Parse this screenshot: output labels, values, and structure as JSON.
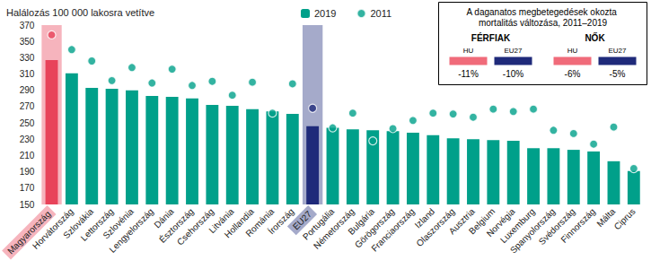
{
  "chart_data": {
    "type": "bar",
    "title": "Halálozás 100 000 lakosra vetítve",
    "categories": [
      "Magyarország",
      "Horvátország",
      "Szlovákia",
      "Lettország",
      "Szlovénia",
      "Lengyelország",
      "Dánia",
      "Észtország",
      "Csehország",
      "Litvánia",
      "Hollandia",
      "Románia",
      "Írország",
      "EU27",
      "Portugália",
      "Németország",
      "Bulgária",
      "Görögország",
      "Franciaország",
      "Izland",
      "Olaszország",
      "Ausztria",
      "Belgium",
      "Norvégia",
      "Luxemburg",
      "Spanyolország",
      "Svédország",
      "Finnország",
      "Málta",
      "Ciprus"
    ],
    "series": [
      {
        "name": "2019",
        "type": "bar",
        "color": "#00a08a",
        "colors": [
          "#e8435a",
          "#00a08a",
          "#00a08a",
          "#00a08a",
          "#00a08a",
          "#00a08a",
          "#00a08a",
          "#00a08a",
          "#00a08a",
          "#00a08a",
          "#00a08a",
          "#00a08a",
          "#00a08a",
          "#1f2a7a",
          "#00a08a",
          "#00a08a",
          "#00a08a",
          "#00a08a",
          "#00a08a",
          "#00a08a",
          "#00a08a",
          "#00a08a",
          "#00a08a",
          "#00a08a",
          "#00a08a",
          "#00a08a",
          "#00a08a",
          "#00a08a",
          "#00a08a",
          "#00a08a"
        ],
        "values": [
          327,
          311,
          293,
          292,
          290,
          283,
          282,
          280,
          272,
          271,
          267,
          264,
          261,
          246,
          244,
          242,
          241,
          240,
          238,
          235,
          231,
          230,
          229,
          228,
          219,
          219,
          217,
          215,
          203,
          191
        ]
      },
      {
        "name": "2011",
        "type": "scatter",
        "marker": "circle",
        "color": "#00a08a",
        "colors": [
          "#e8435a",
          "#00a08a",
          "#00a08a",
          "#00a08a",
          "#00a08a",
          "#00a08a",
          "#00a08a",
          "#00a08a",
          "#00a08a",
          "#00a08a",
          "#00a08a",
          "#00a08a",
          "#00a08a",
          "#1f2a7a",
          "#00a08a",
          "#00a08a",
          "#00a08a",
          "#00a08a",
          "#00a08a",
          "#00a08a",
          "#00a08a",
          "#00a08a",
          "#00a08a",
          "#00a08a",
          "#00a08a",
          "#00a08a",
          "#00a08a",
          "#00a08a",
          "#00a08a",
          "#00a08a"
        ],
        "values": [
          358,
          340,
          326,
          302,
          318,
          299,
          316,
          296,
          301,
          284,
          300,
          262,
          298,
          268,
          244,
          262,
          228,
          243,
          253,
          262,
          261,
          257,
          267,
          264,
          267,
          241,
          237,
          224,
          245,
          194
        ]
      }
    ],
    "ylim": [
      150,
      370
    ],
    "yticks": [
      150,
      170,
      190,
      210,
      230,
      250,
      270,
      290,
      310,
      330,
      350,
      370
    ],
    "grid": false,
    "legend": "top",
    "annotation": {
      "title": "A daganatos megbetegedések okozta mortalitás változása, 2011–2019",
      "groups": [
        {
          "name": "FÉRFIAK",
          "items": [
            {
              "label": "HU",
              "text": "-11%",
              "color": "#f06b7a"
            },
            {
              "label": "EU27",
              "text": "-10%",
              "color": "#1f2a7a"
            }
          ]
        },
        {
          "name": "NŐK",
          "items": [
            {
              "label": "HU",
              "text": "-6%",
              "color": "#f06b7a"
            },
            {
              "label": "EU27",
              "text": "-5%",
              "color": "#1f2a7a"
            }
          ]
        }
      ]
    }
  }
}
